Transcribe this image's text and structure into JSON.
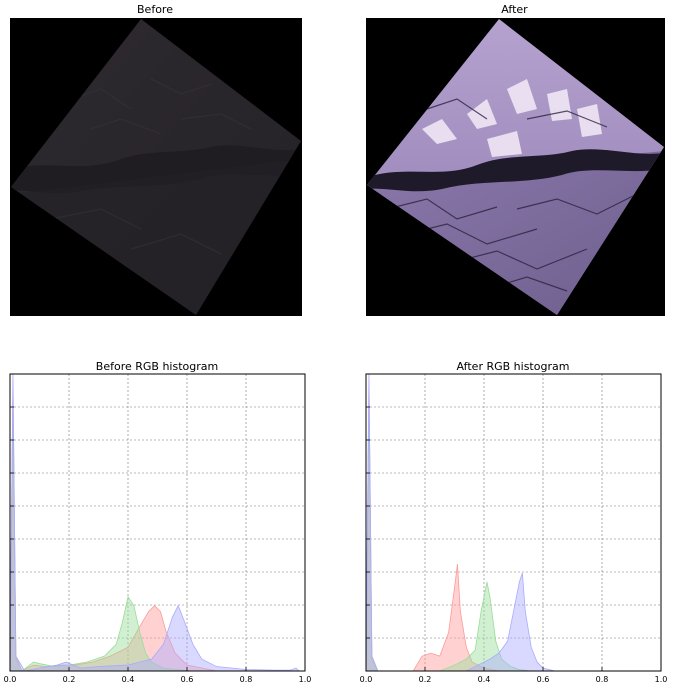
{
  "panels": {
    "before_image": {
      "title": "Before"
    },
    "after_image": {
      "title": "After"
    }
  },
  "chart_data": [
    {
      "type": "area",
      "title": "Before RGB histogram",
      "xlabel": "",
      "ylabel": "",
      "xlim": [
        0.0,
        1.0
      ],
      "ylim": [
        0,
        1
      ],
      "grid": true,
      "xticks": [
        "0.0",
        "0.2",
        "0.4",
        "0.6",
        "0.8",
        "1.0"
      ],
      "series": [
        {
          "color": "#ff9999",
          "x": [
            0,
            0.01,
            0.02,
            0.04,
            0.08,
            0.12,
            0.18,
            0.22,
            0.28,
            0.34,
            0.4,
            0.44,
            0.47,
            0.49,
            0.51,
            0.53,
            0.56,
            0.6,
            0.65,
            0.7,
            1.0
          ],
          "values": [
            0.0,
            0.98,
            0.05,
            0.0,
            0.02,
            0.015,
            0.02,
            0.02,
            0.03,
            0.05,
            0.08,
            0.15,
            0.2,
            0.22,
            0.2,
            0.13,
            0.06,
            0.02,
            0.01,
            0.0,
            0.0
          ]
        },
        {
          "color": "#99dd99",
          "x": [
            0,
            0.01,
            0.02,
            0.04,
            0.08,
            0.1,
            0.15,
            0.2,
            0.26,
            0.32,
            0.36,
            0.38,
            0.4,
            0.42,
            0.44,
            0.46,
            0.48,
            0.52,
            0.56,
            0.62,
            1.0
          ],
          "values": [
            0.0,
            0.9,
            0.04,
            0.0,
            0.03,
            0.025,
            0.015,
            0.02,
            0.03,
            0.05,
            0.09,
            0.16,
            0.25,
            0.22,
            0.13,
            0.06,
            0.03,
            0.01,
            0.005,
            0.0,
            0.0
          ]
        },
        {
          "color": "#aaaaff",
          "x": [
            0,
            0.01,
            0.02,
            0.05,
            0.1,
            0.16,
            0.19,
            0.24,
            0.3,
            0.4,
            0.48,
            0.52,
            0.55,
            0.57,
            0.59,
            0.62,
            0.65,
            0.7,
            0.8,
            0.9,
            0.95,
            0.97,
            0.98,
            1.0
          ],
          "values": [
            0.0,
            1.0,
            0.05,
            0.0,
            0.01,
            0.02,
            0.03,
            0.01,
            0.015,
            0.02,
            0.04,
            0.09,
            0.18,
            0.22,
            0.17,
            0.09,
            0.04,
            0.015,
            0.005,
            0.003,
            0.003,
            0.01,
            0.0,
            0.0
          ]
        }
      ]
    },
    {
      "type": "area",
      "title": "After RGB histogram",
      "xlabel": "",
      "ylabel": "",
      "xlim": [
        0.0,
        1.0
      ],
      "ylim": [
        0,
        1
      ],
      "grid": true,
      "xticks": [
        "0.0",
        "0.2",
        "0.4",
        "0.6",
        "0.8",
        "1.0"
      ],
      "series": [
        {
          "color": "#ff9999",
          "x": [
            0,
            0.01,
            0.02,
            0.04,
            0.16,
            0.19,
            0.22,
            0.25,
            0.28,
            0.3,
            0.31,
            0.32,
            0.34,
            0.36,
            0.4,
            0.45,
            1.0
          ],
          "values": [
            0.0,
            0.98,
            0.05,
            0.0,
            0.0,
            0.05,
            0.06,
            0.05,
            0.13,
            0.28,
            0.36,
            0.2,
            0.08,
            0.03,
            0.01,
            0.0,
            0.0
          ]
        },
        {
          "color": "#99dd99",
          "x": [
            0,
            0.01,
            0.02,
            0.04,
            0.25,
            0.3,
            0.34,
            0.37,
            0.39,
            0.41,
            0.42,
            0.44,
            0.46,
            0.49,
            0.52,
            0.56,
            1.0
          ],
          "values": [
            0.0,
            0.9,
            0.04,
            0.0,
            0.0,
            0.02,
            0.04,
            0.07,
            0.2,
            0.3,
            0.25,
            0.1,
            0.04,
            0.015,
            0.005,
            0.0,
            0.0
          ]
        },
        {
          "color": "#aaaaff",
          "x": [
            0,
            0.01,
            0.02,
            0.04,
            0.34,
            0.38,
            0.42,
            0.45,
            0.48,
            0.5,
            0.52,
            0.53,
            0.54,
            0.56,
            0.58,
            0.6,
            0.64,
            1.0
          ],
          "values": [
            0.0,
            1.0,
            0.05,
            0.0,
            0.0,
            0.02,
            0.04,
            0.06,
            0.1,
            0.2,
            0.3,
            0.33,
            0.2,
            0.08,
            0.03,
            0.01,
            0.0,
            0.0
          ]
        }
      ]
    }
  ]
}
